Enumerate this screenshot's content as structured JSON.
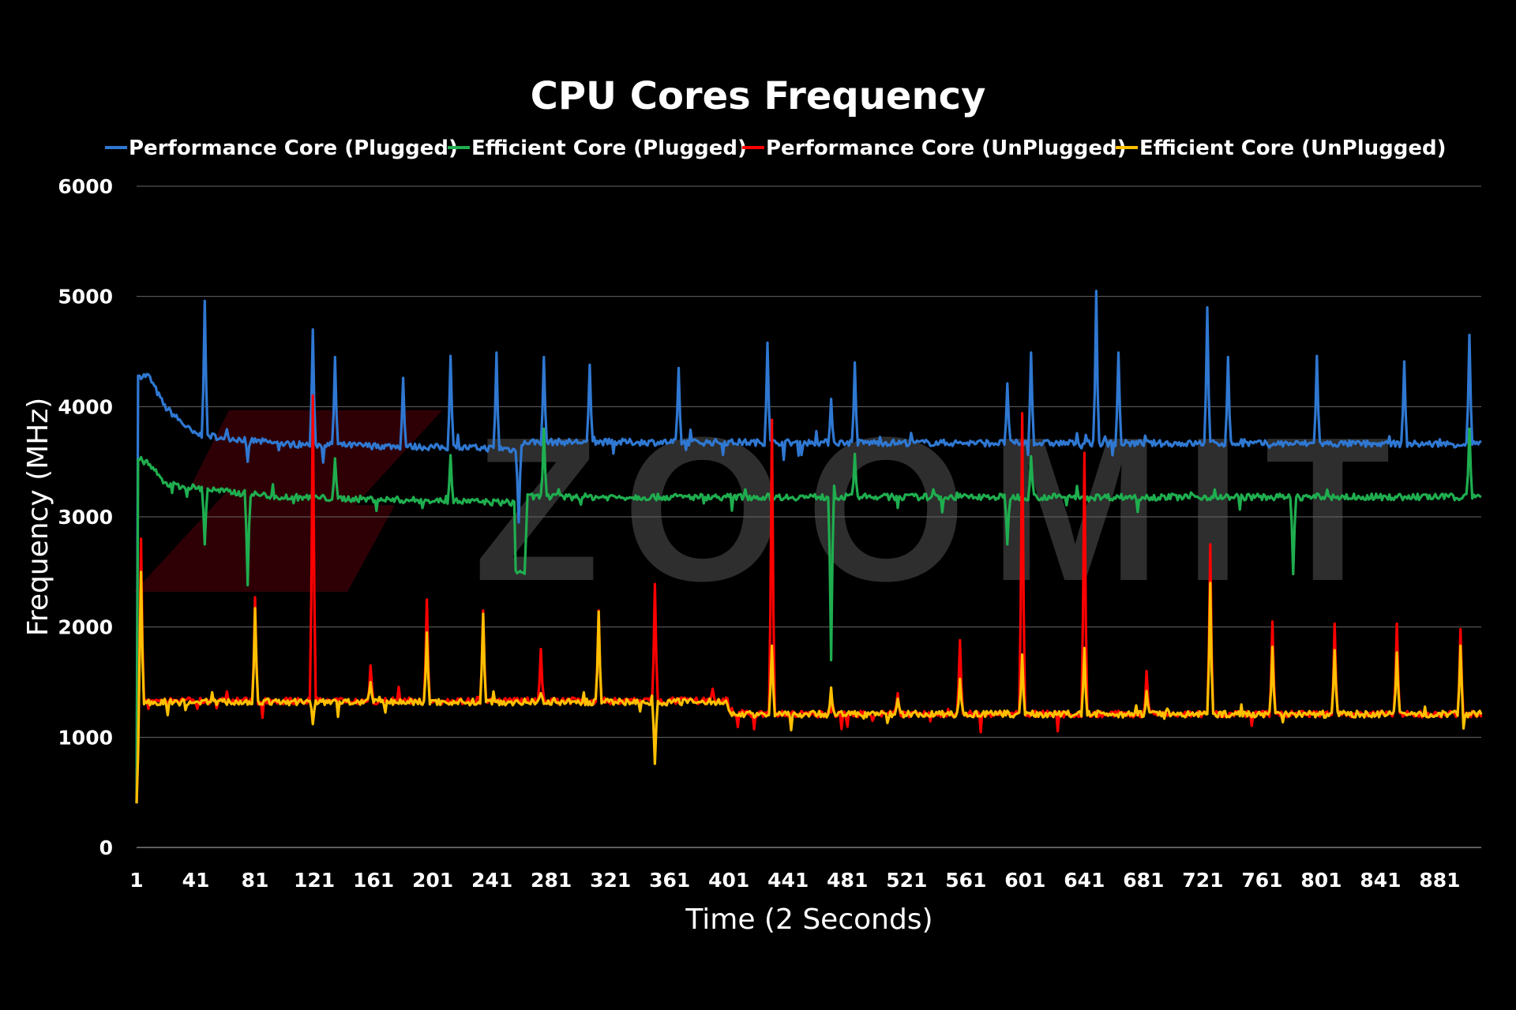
{
  "chart_data": {
    "type": "line",
    "title": "CPU Cores Frequency",
    "xlabel": "Time (2 Seconds)",
    "ylabel": "Frequency (MHz)",
    "ylim": [
      0,
      6000
    ],
    "xlim": [
      1,
      909
    ],
    "yticks": [
      0,
      1000,
      2000,
      3000,
      4000,
      5000,
      6000
    ],
    "xticks": [
      1,
      41,
      81,
      121,
      161,
      201,
      241,
      281,
      321,
      361,
      401,
      441,
      481,
      521,
      561,
      601,
      641,
      681,
      721,
      761,
      801,
      841,
      881
    ],
    "grid": "horizontal",
    "legend_position": "top",
    "watermark": "ZOOMIT",
    "series": [
      {
        "name": "Performance Core (Plugged)",
        "color": "#2f78d2",
        "baseline": [
          [
            1,
            400
          ],
          [
            2,
            4280
          ],
          [
            9,
            4280
          ],
          [
            20,
            4000
          ],
          [
            40,
            3750
          ],
          [
            100,
            3660
          ],
          [
            250,
            3620
          ],
          [
            258,
            3600
          ],
          [
            264,
            3680
          ],
          [
            909,
            3660
          ]
        ],
        "spikes": [
          [
            47,
            4960
          ],
          [
            76,
            3500
          ],
          [
            120,
            4700
          ],
          [
            135,
            4450
          ],
          [
            181,
            4260
          ],
          [
            213,
            4460
          ],
          [
            244,
            4490
          ],
          [
            259,
            2950
          ],
          [
            276,
            4450
          ],
          [
            307,
            4380
          ],
          [
            367,
            4350
          ],
          [
            427,
            4580
          ],
          [
            470,
            4070
          ],
          [
            486,
            4400
          ],
          [
            589,
            4210
          ],
          [
            605,
            4490
          ],
          [
            649,
            5050
          ],
          [
            664,
            4490
          ],
          [
            724,
            4900
          ],
          [
            738,
            4450
          ],
          [
            798,
            4460
          ],
          [
            857,
            4410
          ],
          [
            901,
            4650
          ]
        ]
      },
      {
        "name": "Efficient Core (Plugged)",
        "color": "#1fae4f",
        "baseline": [
          [
            1,
            400
          ],
          [
            2,
            3520
          ],
          [
            8,
            3500
          ],
          [
            20,
            3300
          ],
          [
            60,
            3230
          ],
          [
            100,
            3180
          ],
          [
            250,
            3130
          ],
          [
            256,
            3130
          ],
          [
            257,
            2500
          ],
          [
            263,
            2500
          ],
          [
            265,
            3180
          ],
          [
            909,
            3180
          ]
        ],
        "spikes": [
          [
            47,
            2750
          ],
          [
            76,
            2380
          ],
          [
            135,
            3530
          ],
          [
            213,
            3560
          ],
          [
            276,
            3800
          ],
          [
            470,
            1700
          ],
          [
            486,
            3570
          ],
          [
            589,
            2750
          ],
          [
            605,
            3550
          ],
          [
            782,
            2480
          ],
          [
            901,
            3800
          ]
        ]
      },
      {
        "name": "Performance Core (UnPlugged)",
        "color": "#ff0000",
        "baseline": [
          [
            1,
            400
          ],
          [
            3,
            1330
          ],
          [
            400,
            1330
          ],
          [
            402,
            1210
          ],
          [
            909,
            1210
          ]
        ],
        "spikes": [
          [
            4,
            2800
          ],
          [
            81,
            2270
          ],
          [
            120,
            4100
          ],
          [
            159,
            1650
          ],
          [
            197,
            2250
          ],
          [
            235,
            2150
          ],
          [
            274,
            1800
          ],
          [
            313,
            2150
          ],
          [
            351,
            2390
          ],
          [
            390,
            1440
          ],
          [
            430,
            3880
          ],
          [
            515,
            1400
          ],
          [
            557,
            1880
          ],
          [
            599,
            3940
          ],
          [
            641,
            3580
          ],
          [
            683,
            1600
          ],
          [
            726,
            2750
          ],
          [
            768,
            2050
          ],
          [
            810,
            2030
          ],
          [
            852,
            2030
          ],
          [
            895,
            1980
          ]
        ]
      },
      {
        "name": "Efficient Core (UnPlugged)",
        "color": "#ffc000",
        "baseline": [
          [
            1,
            400
          ],
          [
            3,
            1320
          ],
          [
            400,
            1320
          ],
          [
            402,
            1210
          ],
          [
            909,
            1210
          ]
        ],
        "spikes": [
          [
            4,
            2500
          ],
          [
            81,
            2170
          ],
          [
            120,
            1120
          ],
          [
            159,
            1500
          ],
          [
            197,
            1950
          ],
          [
            235,
            2120
          ],
          [
            274,
            1400
          ],
          [
            313,
            2140
          ],
          [
            351,
            760
          ],
          [
            430,
            1830
          ],
          [
            470,
            1450
          ],
          [
            515,
            1350
          ],
          [
            557,
            1530
          ],
          [
            599,
            1750
          ],
          [
            641,
            1810
          ],
          [
            683,
            1420
          ],
          [
            726,
            2400
          ],
          [
            768,
            1820
          ],
          [
            810,
            1790
          ],
          [
            852,
            1770
          ],
          [
            895,
            1830
          ]
        ]
      }
    ]
  }
}
